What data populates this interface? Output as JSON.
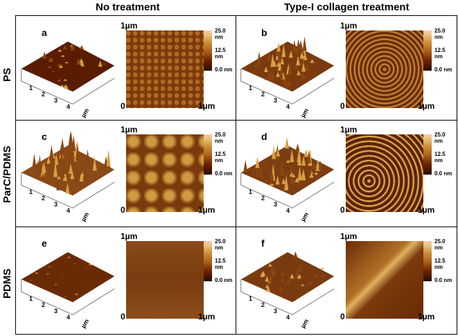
{
  "columns": [
    "No treatment",
    "Type-I collagen treatment"
  ],
  "rows": [
    "PS",
    "ParC/PDMS",
    "PDMS"
  ],
  "panels": [
    {
      "label": "a"
    },
    {
      "label": "b"
    },
    {
      "label": "c"
    },
    {
      "label": "d"
    },
    {
      "label": "e"
    },
    {
      "label": "f"
    }
  ],
  "axis_3d": {
    "ticks": [
      "1",
      "2",
      "3",
      "4"
    ],
    "unit": "µm"
  },
  "image_2d": {
    "top": "1µm",
    "origin": "0",
    "right": "1µm"
  },
  "colorbar": {
    "max": "25.0 nm",
    "mid": "12.5 nm",
    "min": "0.0 nm"
  },
  "colors": {
    "low": "#2a0a00",
    "mid": "#b0641a",
    "high": "#e6c27a"
  }
}
